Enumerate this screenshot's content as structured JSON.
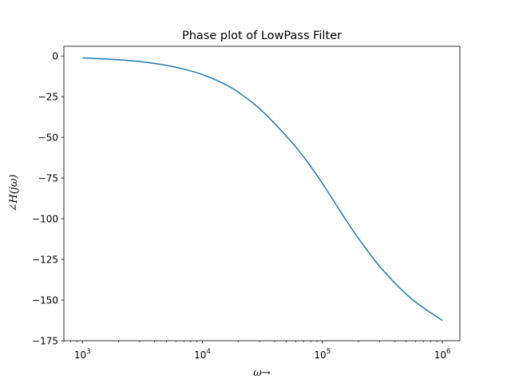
{
  "chart_data": {
    "type": "line",
    "title": "Phase plot of LowPass Filter",
    "xlabel": "ω→",
    "ylabel": "∠H(jω)",
    "xscale": "log",
    "xlim": [
      700,
      1400000
    ],
    "ylim": [
      -175,
      6
    ],
    "grid": false,
    "x_ticks": [
      {
        "value": 1000,
        "base": "10",
        "exp": "3"
      },
      {
        "value": 10000,
        "base": "10",
        "exp": "4"
      },
      {
        "value": 100000,
        "base": "10",
        "exp": "5"
      },
      {
        "value": 1000000,
        "base": "10",
        "exp": "6"
      }
    ],
    "y_ticks": [
      {
        "value": 0,
        "label": "0"
      },
      {
        "value": -25,
        "label": "−25"
      },
      {
        "value": -50,
        "label": "−50"
      },
      {
        "value": -75,
        "label": "−75"
      },
      {
        "value": -100,
        "label": "−100"
      },
      {
        "value": -125,
        "label": "−125"
      },
      {
        "value": -150,
        "label": "−150"
      },
      {
        "value": -175,
        "label": "−175"
      }
    ],
    "series": [
      {
        "color": "#1f77b4",
        "x": [
          1000,
          2000,
          3000,
          5000,
          7000,
          10000,
          15000,
          20000,
          30000,
          50000,
          70000,
          100000,
          150000,
          200000,
          300000,
          500000,
          700000,
          1000000
        ],
        "y": [
          -1.1,
          -2.3,
          -3.4,
          -5.7,
          -8.0,
          -11.4,
          -16.9,
          -22.3,
          -32.4,
          -49.2,
          -62.1,
          -78.3,
          -98.5,
          -112.1,
          -129.3,
          -146.4,
          -154.9,
          -162.5
        ]
      }
    ]
  }
}
